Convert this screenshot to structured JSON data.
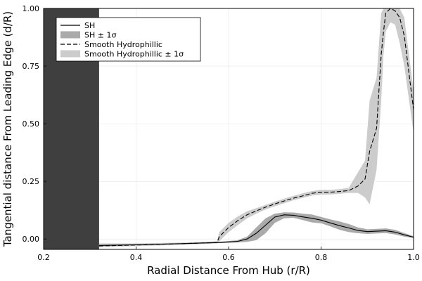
{
  "chart_data": {
    "type": "line",
    "title": "",
    "xlabel": "Radial Distance From Hub (r/R)",
    "ylabel": "Tangential distance From Leading Edge (d/R)",
    "xlim": [
      0.2,
      1.0
    ],
    "ylim": [
      -0.045,
      1.0
    ],
    "xticks": [
      0.2,
      0.4,
      0.6,
      0.8,
      1.0
    ],
    "xtick_labels": [
      "0.2",
      "0.4",
      "0.6",
      "0.8",
      "1.0"
    ],
    "yticks": [
      0.0,
      0.25,
      0.5,
      0.75,
      1.0
    ],
    "ytick_labels": [
      "0.00",
      "0.25",
      "0.50",
      "0.75",
      "1.00"
    ],
    "grid": true,
    "legend_position": "top-left",
    "shaded_region": {
      "x_start": 0.2,
      "x_end": 0.32,
      "color": "#3f3f3f"
    },
    "series": [
      {
        "name": "SH",
        "style": "solid",
        "color": "#000000",
        "x": [
          0.32,
          0.4,
          0.5,
          0.58,
          0.62,
          0.64,
          0.66,
          0.68,
          0.7,
          0.72,
          0.74,
          0.76,
          0.78,
          0.8,
          0.82,
          0.84,
          0.86,
          0.88,
          0.9,
          0.92,
          0.94,
          0.96,
          0.98,
          1.0
        ],
        "y": [
          -0.028,
          -0.025,
          -0.02,
          -0.015,
          -0.01,
          0.0,
          0.025,
          0.06,
          0.095,
          0.105,
          0.103,
          0.096,
          0.09,
          0.082,
          0.07,
          0.058,
          0.048,
          0.037,
          0.032,
          0.034,
          0.036,
          0.03,
          0.018,
          0.008
        ]
      },
      {
        "name": "SH ± 1σ",
        "style": "band",
        "color": "#aaaaaa",
        "x": [
          0.32,
          0.4,
          0.5,
          0.58,
          0.62,
          0.64,
          0.66,
          0.68,
          0.7,
          0.72,
          0.74,
          0.76,
          0.78,
          0.8,
          0.82,
          0.84,
          0.86,
          0.88,
          0.9,
          0.92,
          0.94,
          0.96,
          0.98,
          1.0
        ],
        "lower": [
          -0.035,
          -0.03,
          -0.024,
          -0.018,
          -0.015,
          -0.012,
          -0.005,
          0.025,
          0.07,
          0.09,
          0.092,
          0.082,
          0.072,
          0.068,
          0.055,
          0.04,
          0.03,
          0.025,
          0.022,
          0.024,
          0.026,
          0.02,
          0.01,
          0.004
        ],
        "upper": [
          -0.02,
          -0.02,
          -0.016,
          -0.012,
          -0.005,
          0.01,
          0.05,
          0.09,
          0.11,
          0.116,
          0.115,
          0.11,
          0.106,
          0.096,
          0.085,
          0.076,
          0.065,
          0.05,
          0.042,
          0.044,
          0.046,
          0.04,
          0.026,
          0.012
        ]
      },
      {
        "name": "Smooth Hydrophillic",
        "style": "dashed",
        "color": "#000000",
        "x": [
          0.32,
          0.4,
          0.5,
          0.575,
          0.58,
          0.6,
          0.62,
          0.64,
          0.66,
          0.68,
          0.7,
          0.72,
          0.74,
          0.76,
          0.78,
          0.8,
          0.82,
          0.84,
          0.86,
          0.88,
          0.895,
          0.905,
          0.92,
          0.93,
          0.935,
          0.94,
          0.95,
          0.96,
          0.97,
          0.98,
          1.0
        ],
        "y": [
          -0.03,
          -0.026,
          -0.02,
          -0.015,
          0.01,
          0.05,
          0.08,
          0.105,
          0.122,
          0.138,
          0.152,
          0.165,
          0.177,
          0.187,
          0.198,
          0.203,
          0.203,
          0.206,
          0.21,
          0.23,
          0.26,
          0.38,
          0.48,
          0.8,
          0.9,
          0.98,
          1.0,
          0.99,
          0.96,
          0.88,
          0.56
        ]
      },
      {
        "name": "Smooth Hydrophillic ± 1σ",
        "style": "band",
        "color": "#cccccc",
        "x": [
          0.32,
          0.4,
          0.5,
          0.575,
          0.58,
          0.6,
          0.62,
          0.64,
          0.66,
          0.68,
          0.7,
          0.72,
          0.74,
          0.76,
          0.78,
          0.8,
          0.82,
          0.84,
          0.86,
          0.88,
          0.895,
          0.905,
          0.92,
          0.93,
          0.935,
          0.94,
          0.95,
          0.96,
          0.97,
          0.98,
          1.0
        ],
        "lower": [
          -0.035,
          -0.031,
          -0.025,
          -0.02,
          -0.01,
          0.03,
          0.06,
          0.09,
          0.11,
          0.128,
          0.142,
          0.155,
          0.168,
          0.178,
          0.188,
          0.193,
          0.193,
          0.196,
          0.2,
          0.2,
          0.18,
          0.15,
          0.3,
          0.6,
          0.8,
          0.9,
          0.94,
          0.93,
          0.85,
          0.75,
          0.46
        ],
        "upper": [
          -0.024,
          -0.02,
          -0.015,
          -0.01,
          0.03,
          0.07,
          0.098,
          0.12,
          0.134,
          0.148,
          0.162,
          0.175,
          0.187,
          0.198,
          0.208,
          0.213,
          0.213,
          0.216,
          0.222,
          0.29,
          0.34,
          0.6,
          0.7,
          0.98,
          1.0,
          1.0,
          1.0,
          1.0,
          1.0,
          0.96,
          0.64
        ]
      }
    ]
  }
}
